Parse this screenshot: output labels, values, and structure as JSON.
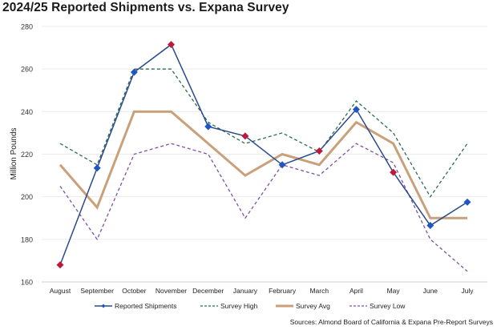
{
  "chart_data": {
    "type": "line",
    "title": "2024/25 Reported Shipments vs. Expana Survey",
    "ylabel": "Million Pounds",
    "xlabel": "",
    "ylim": [
      160,
      280
    ],
    "yticks": [
      160,
      180,
      200,
      220,
      240,
      260,
      280
    ],
    "grid": true,
    "legend_placement": "bottom",
    "categories": [
      "August",
      "September",
      "October",
      "November",
      "December",
      "January",
      "February",
      "March",
      "April",
      "May",
      "June",
      "July"
    ],
    "series": [
      {
        "name": "Reported Shipments",
        "color": "#2a4a8a",
        "style": "solid-markers",
        "values": [
          168,
          213.5,
          258.5,
          271.5,
          233,
          228.5,
          215,
          221.5,
          241,
          211.5,
          186.5,
          197.5
        ],
        "marker_colors": [
          "#c0183a",
          "#1f56c4",
          "#1f56c4",
          "#c0183a",
          "#1f56c4",
          "#c0183a",
          "#1f56c4",
          "#c0183a",
          "#1f56c4",
          "#c0183a",
          "#1f56c4",
          "#1f56c4"
        ]
      },
      {
        "name": "Survey High",
        "color": "#2e6b4f",
        "style": "dashed",
        "values": [
          225,
          215,
          260,
          260,
          235,
          225,
          230,
          221,
          245,
          230,
          200,
          225
        ]
      },
      {
        "name": "Survey Avg",
        "color": "#c9a07a",
        "style": "thick",
        "values": [
          215,
          195,
          240,
          240,
          225,
          210,
          220,
          215,
          235,
          225,
          190,
          190
        ]
      },
      {
        "name": "Survey Low",
        "color": "#7b52a3",
        "style": "dashed",
        "values": [
          205,
          180,
          220,
          225,
          220,
          190,
          215,
          210,
          225,
          216,
          180,
          165
        ]
      }
    ],
    "source": "Sources: Almond Board of California & Expana Pre-Report Surveys"
  }
}
